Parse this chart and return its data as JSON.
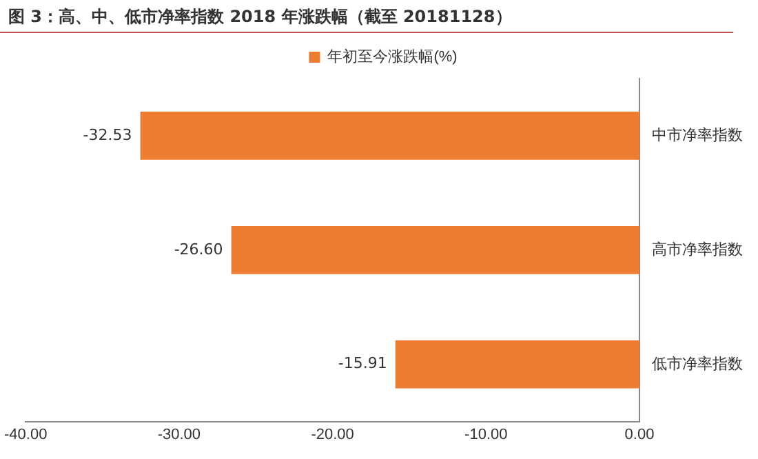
{
  "chart_data": {
    "type": "bar",
    "orientation": "horizontal",
    "title": "图 3：高、中、低市净率指数 2018 年涨跌幅（截至 20181128）",
    "categories": [
      "中市净率指数",
      "高市净率指数",
      "低市净率指数"
    ],
    "series": [
      {
        "name": "年初至今涨跌幅(%)",
        "color": "#ed7d31",
        "values": [
          -32.53,
          -26.6,
          -15.91
        ],
        "value_labels": [
          "-32.53",
          "-26.60",
          "-15.91"
        ]
      }
    ],
    "xlim": [
      -40,
      0
    ],
    "xticks": [
      {
        "value": -40,
        "label": "-40.00"
      },
      {
        "value": -30,
        "label": "-30.00"
      },
      {
        "value": -20,
        "label": "-20.00"
      },
      {
        "value": -10,
        "label": "-10.00"
      },
      {
        "value": 0,
        "label": "0.00"
      }
    ],
    "legend": "top",
    "grid": false
  }
}
